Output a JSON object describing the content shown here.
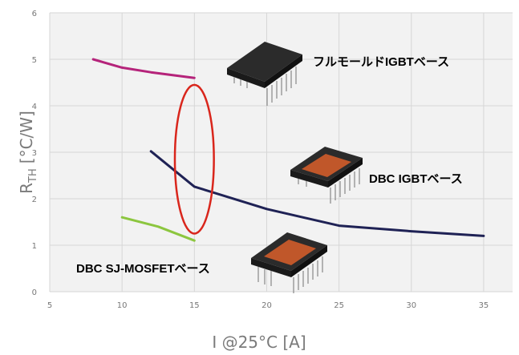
{
  "chart_data": {
    "type": "line",
    "title": "",
    "xlabel": "I @25°C  [A]",
    "ylabel_main": "R",
    "ylabel_sub": "TH",
    "ylabel_unit": "[°C/W]",
    "xlim": [
      5,
      37
    ],
    "ylim": [
      0,
      6
    ],
    "x_ticks": [
      "5",
      "10",
      "15",
      "20",
      "25",
      "30",
      "35"
    ],
    "y_ticks": [
      "0",
      "1",
      "2",
      "3",
      "4",
      "5",
      "6"
    ],
    "grid": true,
    "series": [
      {
        "color": "#b5237a",
        "points": [
          [
            8,
            5.0
          ],
          [
            10,
            4.82
          ],
          [
            12,
            4.72
          ],
          [
            15,
            4.6
          ]
        ]
      },
      {
        "color": "#1f2255",
        "points": [
          [
            12,
            3.02
          ],
          [
            15,
            2.26
          ],
          [
            20,
            1.78
          ],
          [
            25,
            1.42
          ],
          [
            30,
            1.3
          ],
          [
            35,
            1.2
          ]
        ]
      },
      {
        "color": "#8cc63f",
        "points": [
          [
            10,
            1.6
          ],
          [
            12.5,
            1.4
          ],
          [
            15,
            1.1
          ]
        ]
      }
    ],
    "annotations": [
      {
        "text": "フルモールドIGBTベース",
        "color": "#1a3a8f"
      },
      {
        "text": "DBC IGBTベース",
        "color": "#1a3a8f"
      },
      {
        "text": "DBC SJ-MOSFETベース",
        "color": "#1a3a8f"
      }
    ],
    "highlight": {
      "color": "#d9261c",
      "x": 15,
      "y": 2.85,
      "rx_units": 1.35,
      "ry_units": 1.6
    }
  }
}
